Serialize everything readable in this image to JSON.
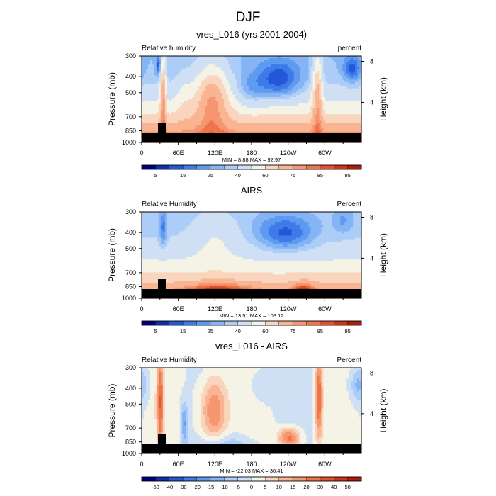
{
  "figure": {
    "title": "DJF"
  },
  "colors": {
    "rh_levels": [
      "#00007f",
      "#0e2fa8",
      "#2457d8",
      "#3c7be8",
      "#5f9af0",
      "#85b4f5",
      "#abcdf7",
      "#cfe0f5",
      "#f5f2e6",
      "#fad5be",
      "#f9b592",
      "#f59670",
      "#ee7449",
      "#e35330",
      "#d03418",
      "#ad1d0c",
      "#7f0604"
    ],
    "diff_levels": [
      "#00007f",
      "#0e2fa8",
      "#2457d8",
      "#3c7be8",
      "#5f9af0",
      "#85b4f5",
      "#abcdf7",
      "#cfe0f5",
      "#f5f2e6",
      "#fad5be",
      "#f9b592",
      "#f59670",
      "#ee7449",
      "#e35330",
      "#d03418",
      "#ad1d0c",
      "#7f0604"
    ],
    "topography": "#000000"
  },
  "chart_data": [
    {
      "type": "heatmap",
      "title": "vres_L016 (yrs 2001-2004)",
      "left_string": "Relative humidity",
      "right_string": "percent",
      "xlabel": "",
      "ylabel": "Pressure (mb)",
      "ylabel_right": "Height (km)",
      "x_ticks": [
        "0",
        "60E",
        "120E",
        "180",
        "120W",
        "60W"
      ],
      "x_tick_values": [
        0,
        60,
        120,
        180,
        240,
        300
      ],
      "xlim": [
        0,
        360
      ],
      "y_ticks": [
        "300",
        "400",
        "500",
        "700",
        "850",
        "1000"
      ],
      "y_tick_values": [
        300,
        400,
        500,
        700,
        850,
        1000
      ],
      "ylim": [
        1000,
        300
      ],
      "height_ticks": [
        "8",
        "4"
      ],
      "height_tick_values": [
        8,
        4
      ],
      "stats": "MIN =   8.88  MAX =  92.97",
      "colorbar_labels": [
        "5",
        "15",
        "25",
        "40",
        "60",
        "75",
        "85",
        "95"
      ],
      "field": "model"
    },
    {
      "type": "heatmap",
      "title": "AIRS",
      "left_string": "Relative Humidity",
      "right_string": "Percent",
      "xlabel": "",
      "ylabel": "Pressure (mb)",
      "ylabel_right": "Height (km)",
      "x_ticks": [
        "0",
        "60E",
        "120E",
        "180",
        "120W",
        "60W"
      ],
      "x_tick_values": [
        0,
        60,
        120,
        180,
        240,
        300
      ],
      "xlim": [
        0,
        360
      ],
      "y_ticks": [
        "300",
        "400",
        "500",
        "700",
        "850",
        "1000"
      ],
      "y_tick_values": [
        300,
        400,
        500,
        700,
        850,
        1000
      ],
      "ylim": [
        1000,
        300
      ],
      "height_ticks": [
        "8",
        "4"
      ],
      "height_tick_values": [
        8,
        4
      ],
      "stats": "MIN =  13.51  MAX = 103.12",
      "colorbar_labels": [
        "5",
        "15",
        "25",
        "40",
        "60",
        "75",
        "85",
        "95"
      ],
      "field": "obs"
    },
    {
      "type": "heatmap",
      "title": "vres_L016 - AIRS",
      "left_string": "Relative Humidity",
      "right_string": "Percent",
      "xlabel": "",
      "ylabel": "Pressure (mb)",
      "ylabel_right": "Height (km)",
      "x_ticks": [
        "0",
        "60E",
        "120E",
        "180",
        "120W",
        "60W"
      ],
      "x_tick_values": [
        0,
        60,
        120,
        180,
        240,
        300
      ],
      "xlim": [
        0,
        360
      ],
      "y_ticks": [
        "300",
        "400",
        "500",
        "700",
        "850",
        "1000"
      ],
      "y_tick_values": [
        300,
        400,
        500,
        700,
        850,
        1000
      ],
      "ylim": [
        1000,
        300
      ],
      "height_ticks": [
        "8",
        "4"
      ],
      "height_tick_values": [
        8,
        4
      ],
      "stats": "MIN = -22.03  MAX =  30.41",
      "colorbar_labels": [
        "-50",
        "-40",
        "-30",
        "-20",
        "-15",
        "-10",
        "-5",
        "0",
        "5",
        "10",
        "15",
        "20",
        "30",
        "40",
        "50"
      ],
      "field": "diff"
    }
  ]
}
